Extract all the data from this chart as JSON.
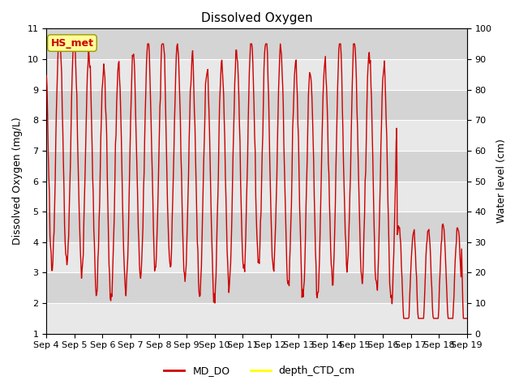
{
  "title": "Dissolved Oxygen",
  "ylabel_left": "Dissolved Oxygen (mg/L)",
  "ylabel_right": "Water level (cm)",
  "ylim_left": [
    1.0,
    11.0
  ],
  "ylim_right": [
    0,
    100
  ],
  "yticks_left": [
    1.0,
    2.0,
    3.0,
    4.0,
    5.0,
    6.0,
    7.0,
    8.0,
    9.0,
    10.0,
    11.0
  ],
  "yticks_right": [
    0,
    10,
    20,
    30,
    40,
    50,
    60,
    70,
    80,
    90,
    100
  ],
  "xtick_labels": [
    "Sep 4",
    "Sep 5",
    "Sep 6",
    "Sep 7",
    "Sep 8",
    "Sep 9",
    "Sep 10",
    "Sep 11",
    "Sep 12",
    "Sep 13",
    "Sep 14",
    "Sep 15",
    "Sep 16",
    "Sep 17",
    "Sep 18",
    "Sep 19"
  ],
  "color_do": "#cc0000",
  "color_depth": "#ffff00",
  "color_bg_band1": "#e8e8e8",
  "color_bg_band2": "#d4d4d4",
  "annotation_text": "HS_met",
  "annotation_color": "#cc0000",
  "annotation_bg": "#ffff99",
  "annotation_edge": "#999900",
  "legend_do": "MD_DO",
  "legend_depth": "depth_CTD_cm",
  "title_fontsize": 11,
  "axis_label_fontsize": 9,
  "tick_fontsize": 8,
  "legend_fontsize": 9,
  "figsize": [
    6.4,
    4.8
  ],
  "dpi": 100
}
